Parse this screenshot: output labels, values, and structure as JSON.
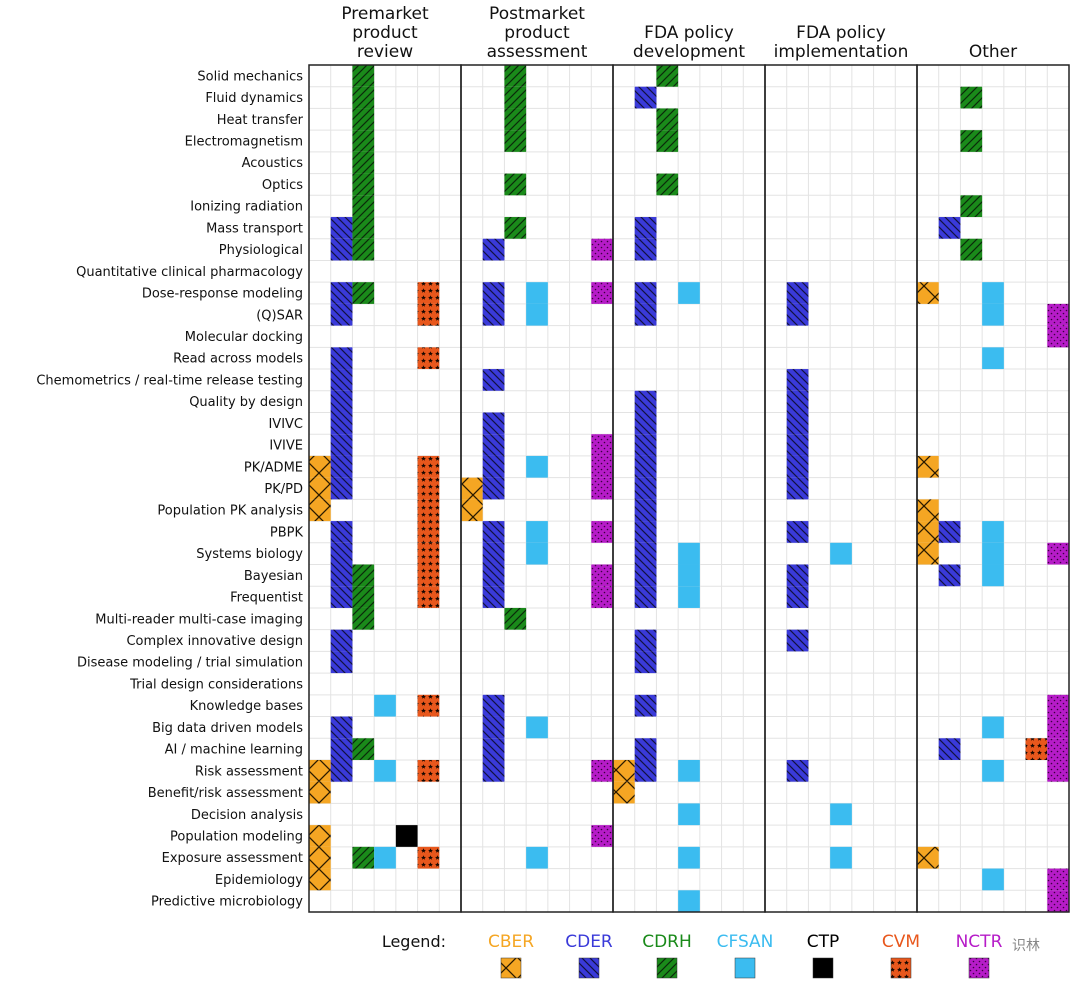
{
  "chart_data": {
    "type": "heatmap",
    "title": "",
    "xlabel": "",
    "ylabel": "",
    "groups": [
      {
        "label": "Premarket product review",
        "lines": [
          "Premarket",
          "product",
          "review"
        ]
      },
      {
        "label": "Postmarket product assessment",
        "lines": [
          "Postmarket",
          "product",
          "assessment"
        ]
      },
      {
        "label": "FDA policy development",
        "lines": [
          "FDA policy",
          "development"
        ]
      },
      {
        "label": "FDA policy implementation",
        "lines": [
          "FDA policy",
          "implementation"
        ]
      },
      {
        "label": "Other",
        "lines": [
          "Other"
        ]
      }
    ],
    "centers": [
      "CBER",
      "CDER",
      "CDRH",
      "CFSAN",
      "CTP",
      "CVM",
      "NCTR"
    ],
    "rows": [
      "Solid mechanics",
      "Fluid dynamics",
      "Heat transfer",
      "Electromagnetism",
      "Acoustics",
      "Optics",
      "Ionizing radiation",
      "Mass transport",
      "Physiological",
      "Quantitative clinical pharmacology",
      "Dose-response modeling",
      "(Q)SAR",
      "Molecular docking",
      "Read across models",
      "Chemometrics / real-time release testing",
      "Quality by design",
      "IVIVC",
      "IVIVE",
      "PK/ADME",
      "PK/PD",
      "Population PK analysis",
      "PBPK",
      "Systems biology",
      "Bayesian",
      "Frequentist",
      "Multi-reader multi-case imaging",
      "Complex innovative design",
      "Disease modeling / trial simulation",
      "Trial design considerations",
      "Knowledge bases",
      "Big data driven models",
      "AI / machine learning",
      "Risk assessment",
      "Benefit/risk assessment",
      "Decision analysis",
      "Population modeling",
      "Exposure assessment",
      "Epidemiology",
      "Predictive microbiology"
    ],
    "cells": {
      "Premarket product review": {
        "CBER": [
          18,
          19,
          20,
          32,
          33,
          35,
          36,
          37
        ],
        "CDER": [
          7,
          8,
          10,
          11,
          13,
          14,
          15,
          16,
          17,
          18,
          19,
          21,
          22,
          23,
          24,
          26,
          27,
          30,
          31,
          32
        ],
        "CDRH": [
          0,
          1,
          2,
          3,
          4,
          5,
          6,
          7,
          8,
          10,
          23,
          24,
          25,
          31,
          36
        ],
        "CFSAN": [
          29,
          32,
          36
        ],
        "CTP": [
          35
        ],
        "CVM": [
          10,
          11,
          13,
          18,
          19,
          20,
          21,
          22,
          23,
          24,
          29,
          32,
          36
        ],
        "NCTR": []
      },
      "Postmarket product assessment": {
        "CBER": [
          19,
          20
        ],
        "CDER": [
          8,
          10,
          11,
          14,
          16,
          17,
          18,
          19,
          21,
          22,
          23,
          24,
          29,
          30,
          31,
          32
        ],
        "CDRH": [
          0,
          1,
          2,
          3,
          5,
          7,
          25
        ],
        "CFSAN": [
          10,
          11,
          18,
          21,
          22,
          30,
          36
        ],
        "CTP": [],
        "CVM": [],
        "NCTR": [
          8,
          10,
          17,
          18,
          19,
          21,
          23,
          24,
          32,
          35
        ]
      },
      "FDA policy development": {
        "CBER": [
          32,
          33
        ],
        "CDER": [
          1,
          7,
          8,
          10,
          11,
          15,
          16,
          17,
          18,
          19,
          20,
          21,
          22,
          23,
          24,
          26,
          27,
          29,
          31,
          32
        ],
        "CDRH": [
          0,
          2,
          3,
          5
        ],
        "CFSAN": [
          10,
          22,
          23,
          24,
          32,
          34,
          36,
          38
        ],
        "CTP": [],
        "CVM": [],
        "NCTR": []
      },
      "FDA policy implementation": {
        "CBER": [],
        "CDER": [
          10,
          11,
          14,
          15,
          16,
          17,
          18,
          19,
          21,
          23,
          24,
          26,
          32
        ],
        "CDRH": [],
        "CFSAN": [
          22,
          34,
          36
        ],
        "CTP": [],
        "CVM": [],
        "NCTR": []
      },
      "Other": {
        "CBER": [
          10,
          18,
          20,
          21,
          22,
          36
        ],
        "CDER": [
          7,
          21,
          23,
          31
        ],
        "CDRH": [
          1,
          3,
          6,
          8
        ],
        "CFSAN": [
          10,
          11,
          13,
          21,
          22,
          23,
          30,
          32,
          37
        ],
        "CTP": [],
        "CVM": [
          31
        ],
        "NCTR": [
          11,
          12,
          22,
          29,
          30,
          31,
          32,
          37,
          38
        ]
      }
    },
    "legend": {
      "title": "Legend:",
      "placement": "bottom",
      "entries": [
        {
          "name": "CBER",
          "color": "#f5a623",
          "pattern": "cross-hatch"
        },
        {
          "name": "CDER",
          "color": "#3a3ad9",
          "pattern": "back-diagonal"
        },
        {
          "name": "CDRH",
          "color": "#1a8a1a",
          "pattern": "forward-diagonal"
        },
        {
          "name": "CFSAN",
          "color": "#3bbcf0",
          "pattern": "solid"
        },
        {
          "name": "CTP",
          "color": "#000000",
          "pattern": "solid"
        },
        {
          "name": "CVM",
          "color": "#e8571c",
          "pattern": "stars"
        },
        {
          "name": "NCTR",
          "color": "#b61cc8",
          "pattern": "dots"
        }
      ]
    },
    "grid": true
  },
  "watermark": "识林"
}
